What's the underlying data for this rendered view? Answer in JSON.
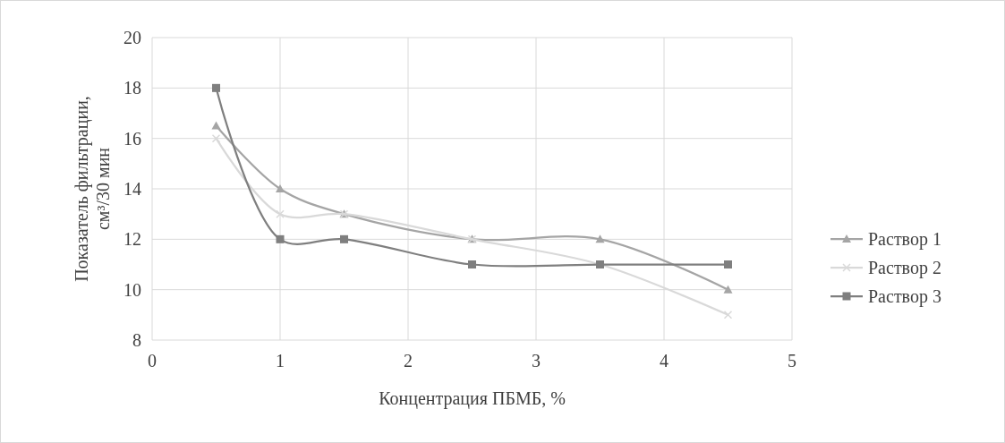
{
  "chart_data": {
    "type": "line",
    "xlabel": "Концентрация ПБМБ, %",
    "ylabel": "Показатель фильтрации, см³/30 мин",
    "x": [
      0.5,
      1,
      1.5,
      2.5,
      3.5,
      4.5
    ],
    "xlim": [
      0,
      5
    ],
    "xticks": [
      0,
      1,
      2,
      3,
      4,
      5
    ],
    "ylim": [
      8,
      20
    ],
    "yticks": [
      8,
      10,
      12,
      14,
      16,
      18,
      20
    ],
    "grid": true,
    "legend": "right",
    "series": [
      {
        "name": "Раствор 1",
        "color": "#a5a5a5",
        "marker": "triangle",
        "values": [
          16.5,
          14,
          13,
          12,
          12,
          10
        ]
      },
      {
        "name": "Раствор 2",
        "color": "#d9d9d9",
        "marker": "cross",
        "values": [
          16,
          13,
          13,
          12,
          11,
          9
        ]
      },
      {
        "name": "Раствор 3",
        "color": "#7f7f7f",
        "marker": "square",
        "values": [
          18,
          12,
          12,
          11,
          11,
          11
        ]
      }
    ]
  }
}
